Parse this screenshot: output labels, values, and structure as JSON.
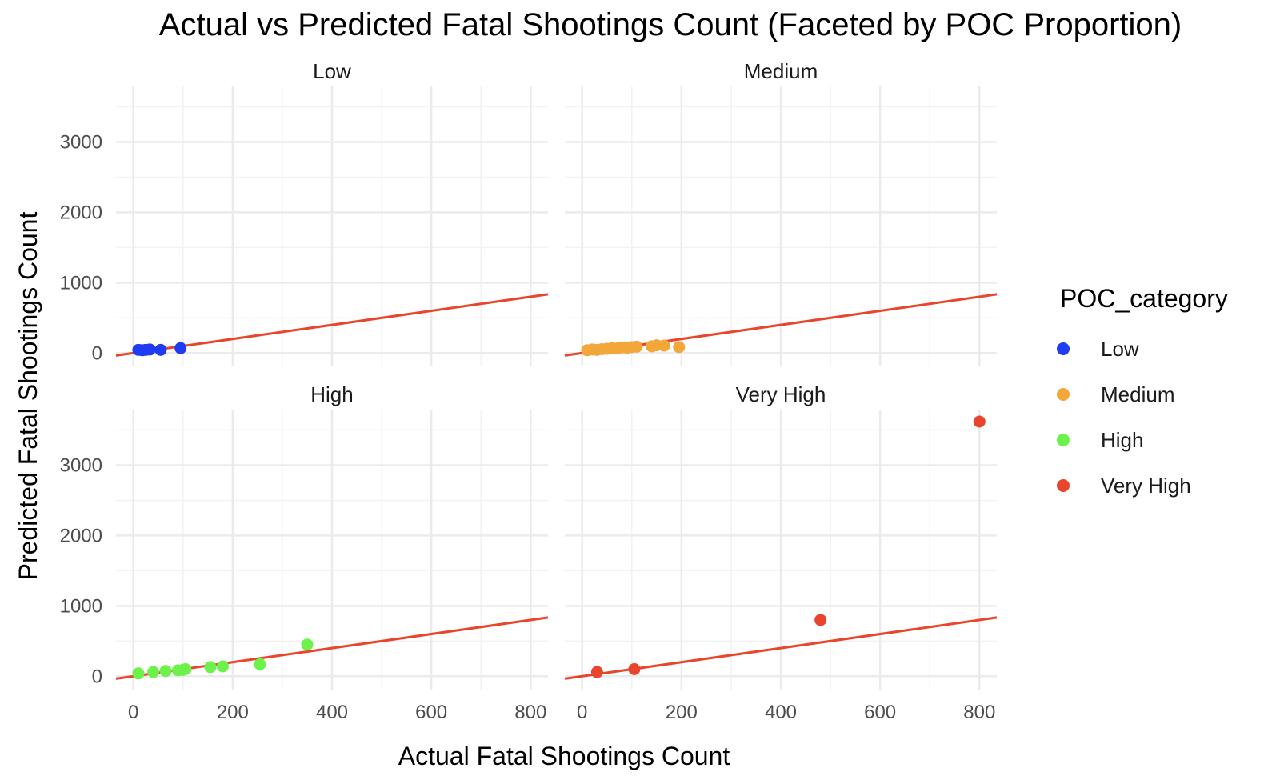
{
  "chart_data": {
    "type": "scatter",
    "title": "Actual vs Predicted Fatal Shootings Count (Faceted by POC Proportion)",
    "xlabel": "Actual Fatal Shootings Count",
    "ylabel": "Predicted Fatal Shootings Count",
    "xlim": [
      -35,
      835
    ],
    "ylim": [
      -190,
      3790
    ],
    "x_ticks": [
      0,
      200,
      400,
      600,
      800
    ],
    "y_ticks": [
      0,
      1000,
      2000,
      3000
    ],
    "grid": true,
    "legend": {
      "title": "POC_category",
      "position": "right",
      "entries": [
        "Low",
        "Medium",
        "High",
        "Very High"
      ]
    },
    "reference_line": {
      "color": "#e8452c",
      "slope": 1.0,
      "intercept": 0
    },
    "facets": [
      {
        "name": "Low",
        "color": "#1f3cf2",
        "points": [
          [
            10,
            45
          ],
          [
            18,
            40
          ],
          [
            25,
            45
          ],
          [
            33,
            50
          ],
          [
            55,
            45
          ],
          [
            95,
            70
          ]
        ]
      },
      {
        "name": "Medium",
        "color": "#f3a63a",
        "points": [
          [
            10,
            40
          ],
          [
            20,
            50
          ],
          [
            30,
            45
          ],
          [
            40,
            55
          ],
          [
            50,
            60
          ],
          [
            60,
            70
          ],
          [
            70,
            65
          ],
          [
            80,
            80
          ],
          [
            90,
            75
          ],
          [
            100,
            85
          ],
          [
            110,
            90
          ],
          [
            140,
            95
          ],
          [
            150,
            110
          ],
          [
            165,
            105
          ],
          [
            195,
            85
          ]
        ]
      },
      {
        "name": "High",
        "color": "#6cf24a",
        "points": [
          [
            10,
            40
          ],
          [
            40,
            60
          ],
          [
            65,
            75
          ],
          [
            90,
            85
          ],
          [
            100,
            90
          ],
          [
            105,
            100
          ],
          [
            155,
            130
          ],
          [
            180,
            140
          ],
          [
            255,
            170
          ],
          [
            350,
            450
          ]
        ]
      },
      {
        "name": "Very High",
        "color": "#e8452c",
        "points": [
          [
            30,
            60
          ],
          [
            105,
            100
          ],
          [
            480,
            800
          ],
          [
            800,
            3620
          ]
        ]
      }
    ]
  }
}
